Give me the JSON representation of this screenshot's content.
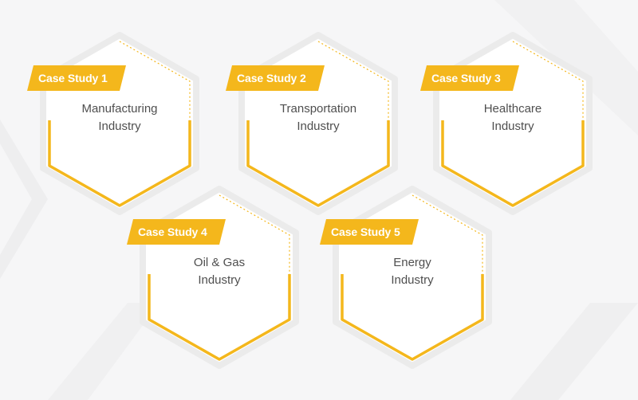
{
  "colors": {
    "accent": "#f4b71c",
    "background": "#f6f6f7",
    "card": "#ffffff",
    "text": "#4f4f4f",
    "tag_text": "#ffffff"
  },
  "cases": [
    {
      "tag": "Case Study 1",
      "line1": "Manufacturing",
      "line2": "Industry"
    },
    {
      "tag": "Case Study 2",
      "line1": "Transportation",
      "line2": "Industry"
    },
    {
      "tag": "Case Study 3",
      "line1": "Healthcare",
      "line2": "Industry"
    },
    {
      "tag": "Case Study 4",
      "line1": "Oil & Gas",
      "line2": "Industry"
    },
    {
      "tag": "Case Study 5",
      "line1": "Energy",
      "line2": "Industry"
    }
  ]
}
